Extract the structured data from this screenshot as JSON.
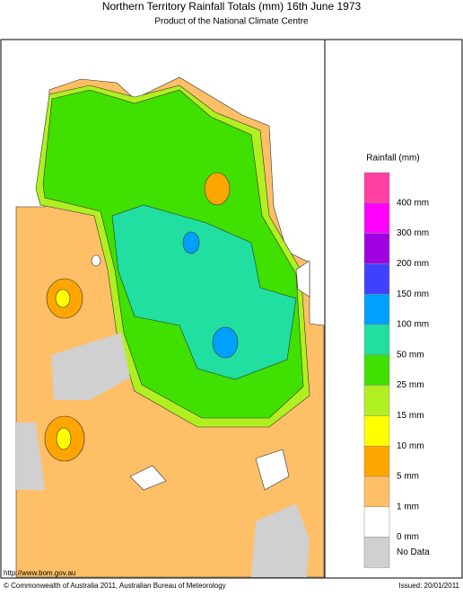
{
  "header": {
    "title": "Northern Territory Rainfall Totals (mm) 16th June 1973",
    "subtitle": "Product of the National Climate Centre"
  },
  "legend": {
    "title": "Rainfall (mm)",
    "items": [
      {
        "label": null,
        "color": "#ff40a0"
      },
      {
        "label": "400 mm",
        "color": "#ff00ff"
      },
      {
        "label": "300 mm",
        "color": "#a000e0"
      },
      {
        "label": "200 mm",
        "color": "#4040ff"
      },
      {
        "label": "150 mm",
        "color": "#00a0ff"
      },
      {
        "label": "100 mm",
        "color": "#20dfa0"
      },
      {
        "label": "50 mm",
        "color": "#40e000"
      },
      {
        "label": "25 mm",
        "color": "#b0f020"
      },
      {
        "label": "15 mm",
        "color": "#ffff00"
      },
      {
        "label": "10 mm",
        "color": "#ffa500"
      },
      {
        "label": "5 mm",
        "color": "#ffbf66"
      },
      {
        "label": "1 mm",
        "color": "#ffffff"
      },
      {
        "label": "0 mm",
        "color": "#d0d0d0"
      }
    ],
    "nodata_label": "No Data"
  },
  "footer": {
    "url": "http://www.bom.gov.au",
    "copyright": "© Commonwealth of Australia 2011, Australian Bureau of Meteorology",
    "issued": "Issued: 20/01/2011"
  }
}
